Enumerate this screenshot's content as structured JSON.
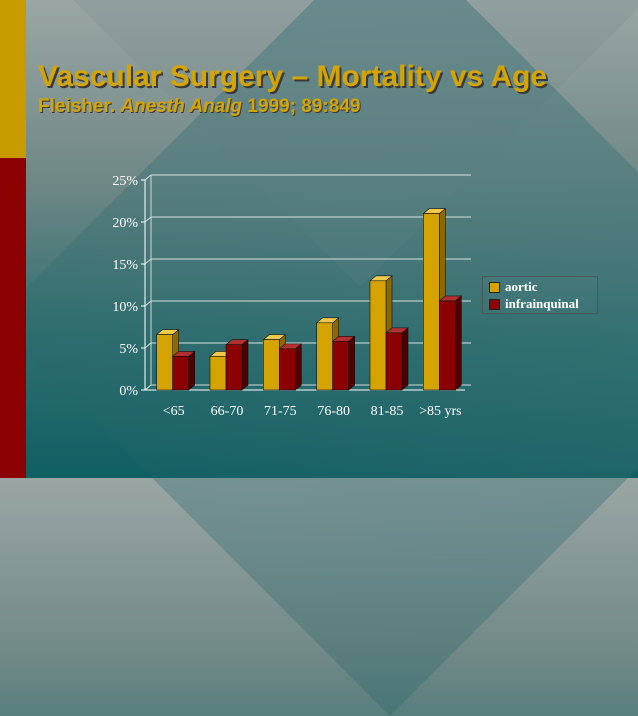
{
  "slide": {
    "title": "Vascular Surgery – Mortality vs Age",
    "subtitle_author": "Fleisher.",
    "subtitle_journal": "Anesth Analg",
    "subtitle_ref": "1999; 89:849"
  },
  "colors": {
    "aortic": "#d4a300",
    "infrainquinal": "#8b0000",
    "accent_gold": "#c79a00",
    "accent_red": "#8b0000"
  },
  "chart_data": {
    "type": "bar",
    "categories": [
      "<65",
      "66-70",
      "71-75",
      "76-80",
      "81-85",
      ">85 yrs"
    ],
    "series": [
      {
        "name": "aortic",
        "values": [
          6.6,
          4.0,
          6.0,
          8.0,
          13.0,
          21.0
        ]
      },
      {
        "name": "infrainquinal",
        "values": [
          4.0,
          5.4,
          4.9,
          5.8,
          6.8,
          10.6
        ]
      }
    ],
    "y_ticks": [
      "0%",
      "5%",
      "10%",
      "15%",
      "20%",
      "25%"
    ],
    "ylim": [
      0,
      25
    ],
    "grid": true,
    "legend": "right",
    "three_d": true
  }
}
